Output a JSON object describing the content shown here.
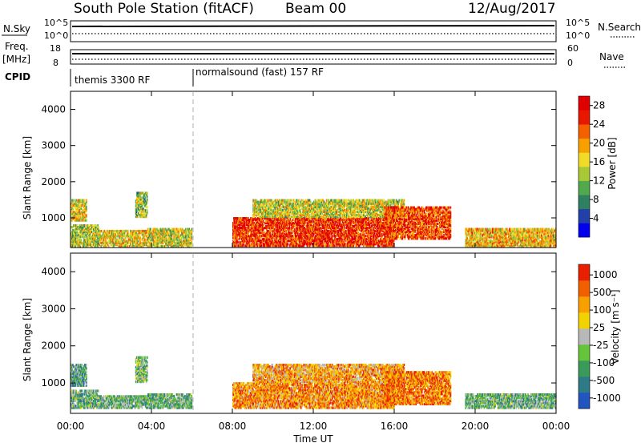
{
  "header": {
    "station": "South Pole Station (fitACF)",
    "beam": "Beam 00",
    "date": "12/Aug/2017"
  },
  "strip": {
    "nsky_label": "N.Sky",
    "nsky_ticks": [
      "10^5",
      "10^0"
    ],
    "nsearch_label": "N.Search",
    "nsearch_ticks": [
      "10^5",
      "10^0"
    ],
    "freq_label_1": "Freq.",
    "freq_label_2": "[MHz]",
    "freq_ticks": [
      "18",
      "8"
    ],
    "nave_label": "Nave",
    "nave_ticks": [
      "60",
      "0"
    ],
    "cpid_label": "CPID",
    "cpid_segments": [
      {
        "label": "themis 3300 RF",
        "start_hour": 0,
        "end_hour": 6
      },
      {
        "label": "normalsound (fast) 157 RF",
        "start_hour": 6,
        "end_hour": 24
      }
    ]
  },
  "colors": {
    "power": [
      "#0000ee",
      "#2240a8",
      "#2f8060",
      "#52a84c",
      "#a8c838",
      "#f0dc28",
      "#f8a000",
      "#f46000",
      "#e81800",
      "#e00000"
    ],
    "velocity": [
      "#2255c0",
      "#2e7a86",
      "#3a9a5a",
      "#66c43a",
      "#b8b8b8",
      "#f2d200",
      "#f8a000",
      "#f06000",
      "#e82000"
    ]
  },
  "chart_data": [
    {
      "type": "heatmap",
      "xlabel": "Time UT",
      "ylabel": "Slant Range [km]",
      "xlim": [
        0,
        24
      ],
      "ylim": [
        180,
        4500
      ],
      "xticks": [
        "00:00",
        "04:00",
        "08:00",
        "12:00",
        "16:00",
        "20:00",
        "00:00"
      ],
      "yticks": [
        1000,
        2000,
        3000,
        4000
      ],
      "colorbar": {
        "label": "Power [dB]",
        "ticks": [
          4,
          8,
          12,
          16,
          20,
          24,
          28
        ],
        "range": [
          0,
          30
        ]
      },
      "regions": [
        {
          "t0": 0.0,
          "t1": 1.4,
          "r0": 180,
          "r1": 800,
          "level": 0.45
        },
        {
          "t0": 0.0,
          "t1": 0.8,
          "r0": 900,
          "r1": 1500,
          "level": 0.55
        },
        {
          "t0": 1.4,
          "t1": 3.8,
          "r0": 180,
          "r1": 650,
          "level": 0.55
        },
        {
          "t0": 3.2,
          "t1": 3.8,
          "r0": 1000,
          "r1": 1700,
          "level": 0.4
        },
        {
          "t0": 3.8,
          "t1": 6.0,
          "r0": 180,
          "r1": 700,
          "level": 0.5
        },
        {
          "t0": 8.0,
          "t1": 16.0,
          "r0": 200,
          "r1": 1000,
          "level": 0.85
        },
        {
          "t0": 9.0,
          "t1": 16.5,
          "r0": 1000,
          "r1": 1500,
          "level": 0.5
        },
        {
          "t0": 15.5,
          "t1": 18.8,
          "r0": 400,
          "r1": 1300,
          "level": 0.8
        },
        {
          "t0": 19.5,
          "t1": 24.0,
          "r0": 180,
          "r1": 700,
          "level": 0.6
        }
      ]
    },
    {
      "type": "heatmap",
      "xlabel": "Time UT",
      "ylabel": "Slant Range [km]",
      "xlim": [
        0,
        24
      ],
      "ylim": [
        180,
        4500
      ],
      "xticks": [
        "00:00",
        "04:00",
        "08:00",
        "12:00",
        "16:00",
        "20:00",
        "00:00"
      ],
      "yticks": [
        1000,
        2000,
        3000,
        4000
      ],
      "colorbar": {
        "label": "Velocity [m s⁻¹]",
        "ticks": [
          "1000",
          "500",
          "100",
          "25",
          "-25",
          "-100",
          "-500",
          "-1000"
        ],
        "range": [
          -1000,
          1000
        ]
      },
      "regions": [
        {
          "t0": 0.0,
          "t1": 1.4,
          "r0": 300,
          "r1": 800,
          "level": 0.35
        },
        {
          "t0": 0.0,
          "t1": 0.8,
          "r0": 900,
          "r1": 1500,
          "level": 0.3
        },
        {
          "t0": 1.4,
          "t1": 3.8,
          "r0": 300,
          "r1": 650,
          "level": 0.35
        },
        {
          "t0": 3.2,
          "t1": 3.8,
          "r0": 1000,
          "r1": 1700,
          "level": 0.4
        },
        {
          "t0": 3.8,
          "t1": 6.0,
          "r0": 300,
          "r1": 700,
          "level": 0.35
        },
        {
          "t0": 8.0,
          "t1": 16.0,
          "r0": 300,
          "r1": 1000,
          "level": 0.75
        },
        {
          "t0": 9.0,
          "t1": 16.5,
          "r0": 1000,
          "r1": 1500,
          "level": 0.7
        },
        {
          "t0": 15.5,
          "t1": 18.8,
          "r0": 400,
          "r1": 1300,
          "level": 0.8
        },
        {
          "t0": 19.5,
          "t1": 24.0,
          "r0": 300,
          "r1": 700,
          "level": 0.35
        }
      ]
    }
  ]
}
